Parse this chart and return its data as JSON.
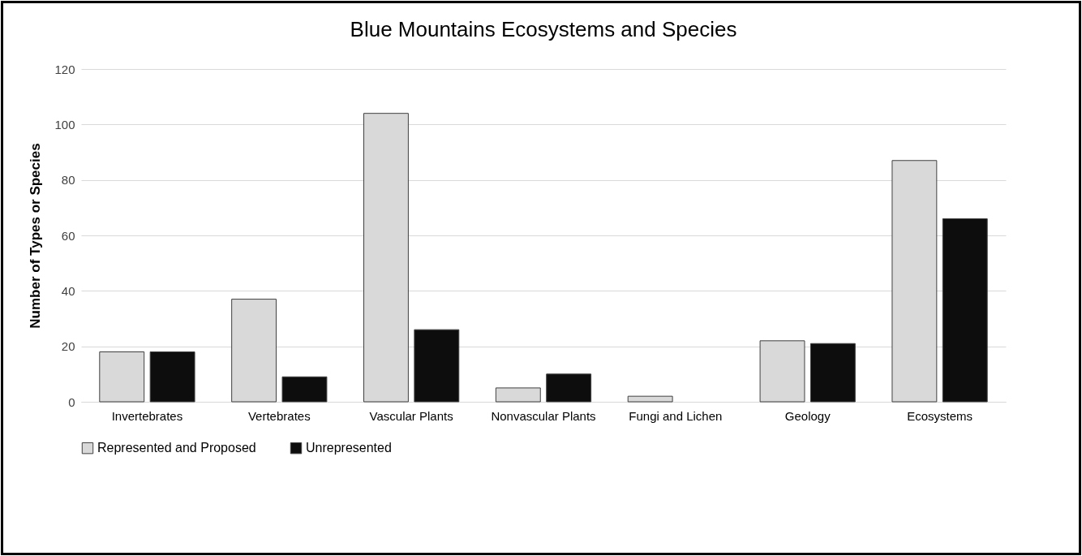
{
  "chart_data": {
    "type": "bar",
    "title": "Blue Mountains Ecosystems and Species",
    "ylabel": "Number of Types or Species",
    "categories": [
      "Invertebrates",
      "Vertebrates",
      "Vascular Plants",
      "Nonvascular Plants",
      "Fungi and Lichen",
      "Geology",
      "Ecosystems"
    ],
    "series": [
      {
        "name": "Represented and Proposed",
        "color": "#d9d9d9",
        "values": [
          18,
          37,
          104,
          5,
          2,
          22,
          87
        ]
      },
      {
        "name": "Unrepresented",
        "color": "#0d0d0d",
        "values": [
          18,
          9,
          26,
          10,
          0,
          21,
          66
        ]
      }
    ],
    "ylim": [
      0,
      120
    ],
    "yticks": [
      0,
      20,
      40,
      60,
      80,
      100,
      120
    ],
    "grid": "y",
    "legend": "bottom"
  }
}
